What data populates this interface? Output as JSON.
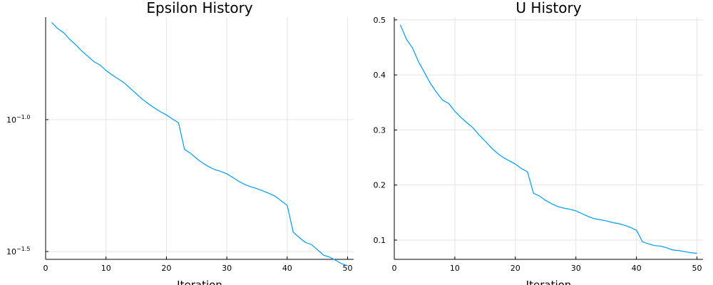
{
  "chart_data": [
    {
      "type": "line",
      "title": "Epsilon History",
      "xlabel": "Iteration",
      "ylabel": "",
      "yscale": "log10",
      "xlim": [
        0,
        51
      ],
      "ylim": [
        0.0295,
        0.245
      ],
      "xticks": [
        0,
        10,
        20,
        30,
        40,
        50
      ],
      "xtick_labels": [
        "0",
        "10",
        "20",
        "30",
        "40",
        "50"
      ],
      "yticks": [
        {
          "value": 0.1,
          "base": "10",
          "exp": "−1.0"
        },
        {
          "value": 0.0316,
          "base": "10",
          "exp": "−1.5"
        }
      ],
      "grid": true,
      "legend": "none",
      "color": "#009AFA",
      "series": [
        {
          "x": [
            1,
            2,
            3,
            4,
            5,
            6,
            7,
            8,
            9,
            10,
            11,
            12,
            13,
            14,
            15,
            16,
            17,
            18,
            19,
            20,
            21,
            22,
            23,
            24,
            25,
            26,
            27,
            28,
            29,
            30,
            31,
            32,
            33,
            34,
            35,
            36,
            37,
            38,
            39,
            40,
            41,
            42,
            43,
            44,
            45,
            46,
            47,
            48,
            49,
            50
          ],
          "values": [
            0.2339,
            0.2215,
            0.2137,
            0.2017,
            0.1922,
            0.182,
            0.1739,
            0.166,
            0.1612,
            0.1537,
            0.1479,
            0.1429,
            0.138,
            0.1315,
            0.1254,
            0.1196,
            0.115,
            0.1108,
            0.1072,
            0.1042,
            0.1006,
            0.0973,
            0.0771,
            0.0745,
            0.0712,
            0.0684,
            0.0663,
            0.0646,
            0.0636,
            0.0623,
            0.0603,
            0.0583,
            0.0567,
            0.0556,
            0.0547,
            0.0536,
            0.0525,
            0.0512,
            0.0492,
            0.0473,
            0.0374,
            0.0357,
            0.0342,
            0.0336,
            0.0321,
            0.0306,
            0.0301,
            0.0293,
            0.0284,
            0.0279
          ]
        }
      ]
    },
    {
      "type": "line",
      "title": "U History",
      "xlabel": "Iteration",
      "ylabel": "",
      "xlim": [
        0,
        51
      ],
      "ylim": [
        0.065,
        0.505
      ],
      "xticks": [
        0,
        10,
        20,
        30,
        40,
        50
      ],
      "xtick_labels": [
        "0",
        "10",
        "20",
        "30",
        "40",
        "50"
      ],
      "yticks": [
        0.1,
        0.2,
        0.3,
        0.4,
        0.5
      ],
      "ytick_labels": [
        "0.1",
        "0.2",
        "0.3",
        "0.4",
        "0.5"
      ],
      "grid": true,
      "legend": "none",
      "color": "#009AFA",
      "series": [
        {
          "x": [
            1,
            2,
            3,
            4,
            5,
            6,
            7,
            8,
            9,
            10,
            11,
            12,
            13,
            14,
            15,
            16,
            17,
            18,
            19,
            20,
            21,
            22,
            23,
            24,
            25,
            26,
            27,
            28,
            29,
            30,
            31,
            32,
            33,
            34,
            35,
            36,
            37,
            38,
            39,
            40,
            41,
            42,
            43,
            44,
            45,
            46,
            47,
            48,
            49,
            50
          ],
          "values": [
            0.491,
            0.465,
            0.449,
            0.424,
            0.404,
            0.384,
            0.368,
            0.354,
            0.348,
            0.334,
            0.323,
            0.313,
            0.304,
            0.291,
            0.28,
            0.268,
            0.258,
            0.25,
            0.244,
            0.238,
            0.23,
            0.224,
            0.185,
            0.18,
            0.172,
            0.166,
            0.161,
            0.158,
            0.156,
            0.153,
            0.148,
            0.143,
            0.139,
            0.137,
            0.135,
            0.132,
            0.13,
            0.127,
            0.123,
            0.118,
            0.097,
            0.093,
            0.09,
            0.089,
            0.086,
            0.082,
            0.081,
            0.079,
            0.077,
            0.076
          ]
        }
      ]
    }
  ]
}
